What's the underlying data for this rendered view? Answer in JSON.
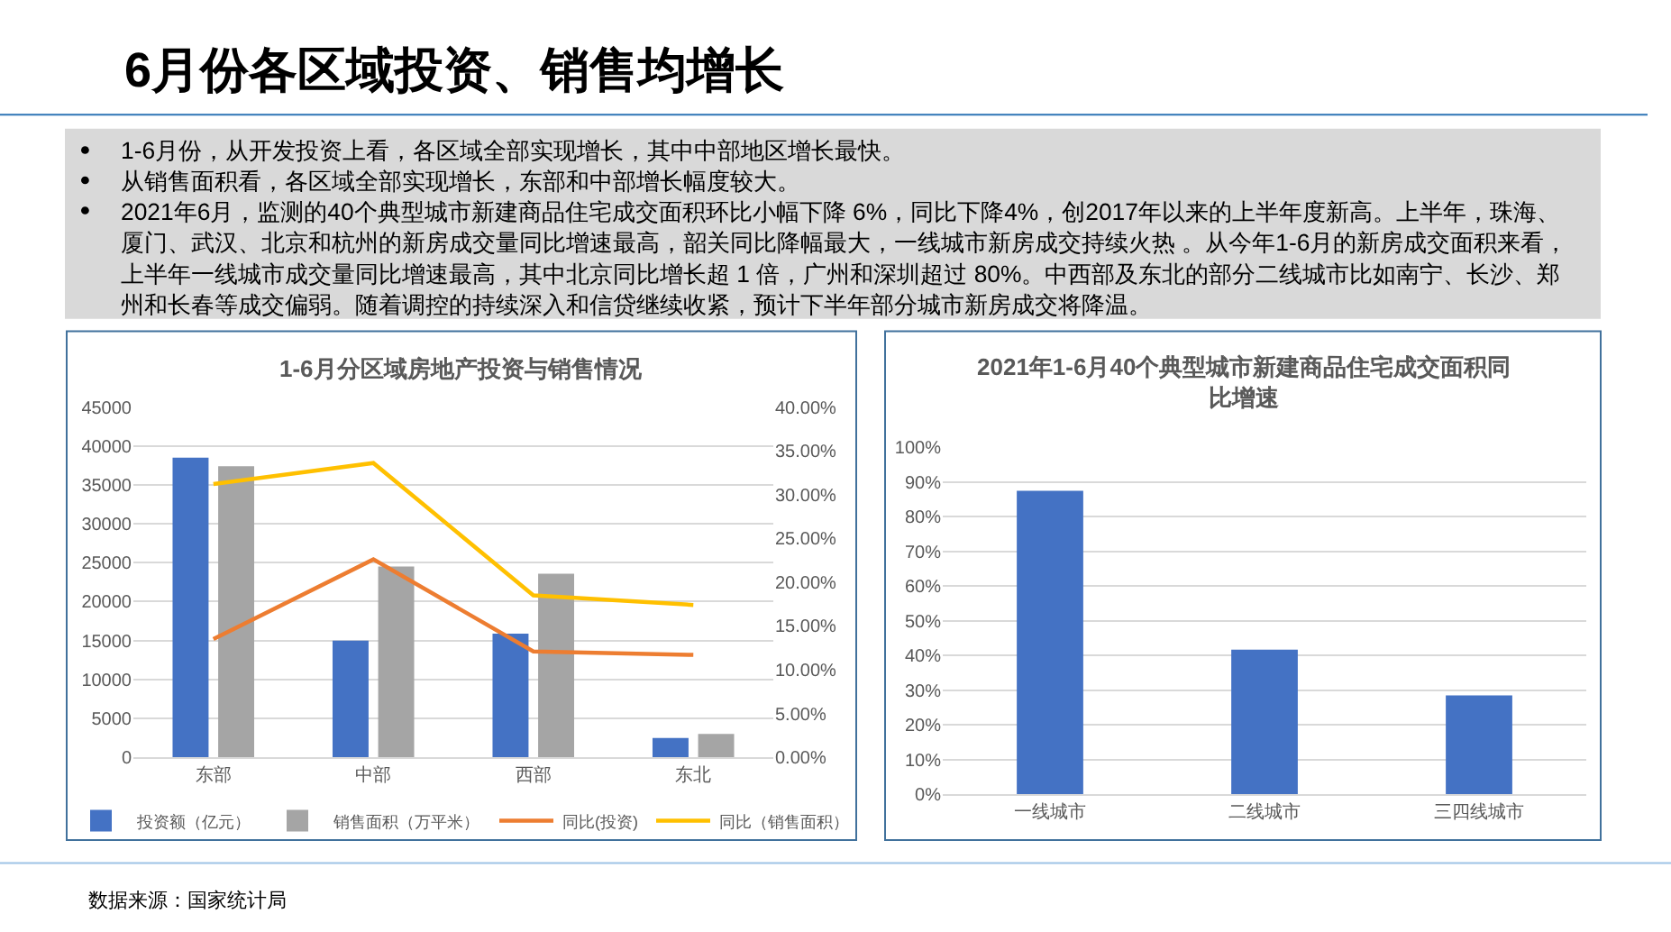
{
  "chart_data": [
    {
      "type": "other",
      "title": "6月份各区域投资、销售均增长",
      "annotations": [
        "1-6月份，从开发投资上看，各区域全部实现增长，其中中部地区增长最快。",
        "从销售面积看，各区域全部实现增长，东部和中部增长幅度较大。",
        "2021年6月，监测的40个典型城市新建商品住宅成交面积环比小幅下降 6%，同比下降4%，创2017年以来的上半年度新高。上半年，珠海、厦门、武汉、北京和杭州的新房成交量同比增速最高，韶关同比降幅最大，一线城市新房成交持续火热 。从今年1-6月的新房成交面积来看，上半年一线城市成交量同比增速最高，其中北京同比增长超 1 倍，广州和深圳超过 80%。中西部及东北的部分二线城市比如南宁、长沙、郑州和长春等成交偏弱。随着调控的持续深入和信贷继续收紧，预计下半年部分城市新房成交将降温。"
      ]
    },
    {
      "type": "bar",
      "title": "1-6月分区域房地产投资与销售情况",
      "categories": [
        "东部",
        "中部",
        "西部",
        "东北"
      ],
      "series": [
        {
          "name": "投资额（亿元）",
          "color": "#4472c4",
          "values": [
            38500,
            15000,
            15900,
            2500
          ]
        },
        {
          "name": "销售面积（万平米）",
          "color": "#a5a5a5",
          "values": [
            37400,
            24500,
            23600,
            3000
          ]
        },
        {
          "name": "同比(投资)",
          "type": "line",
          "axis": "y2",
          "color": "#ed7d31",
          "values": [
            13.5,
            22.6,
            12.1,
            11.7
          ]
        },
        {
          "name": "同比（销售面积）",
          "type": "line",
          "axis": "y2",
          "color": "#ffc000",
          "values": [
            31.2,
            33.6,
            18.5,
            17.4
          ]
        }
      ],
      "ylim": [
        0,
        45000
      ],
      "yticks": [
        0,
        5000,
        10000,
        15000,
        20000,
        25000,
        30000,
        35000,
        40000,
        45000
      ],
      "y2lim": [
        0,
        40
      ],
      "y2ticks": [
        {
          "value": 0,
          "label": "0.00%"
        },
        {
          "value": 5,
          "label": "5.00%"
        },
        {
          "value": 10,
          "label": "10.00%"
        },
        {
          "value": 15,
          "label": "15.00%"
        },
        {
          "value": 20,
          "label": "20.00%"
        },
        {
          "value": 25,
          "label": "25.00%"
        },
        {
          "value": 30,
          "label": "30.00%"
        },
        {
          "value": 35,
          "label": "35.00%"
        },
        {
          "value": 40,
          "label": "40.00%"
        }
      ],
      "grid": "y",
      "legend": "bottom",
      "marker": "none",
      "annotations": [
        "数据来源：国家统计局"
      ]
    },
    {
      "type": "bar",
      "title": "2021年1-6月40个典型城市新建商品住宅成交面积同比增速",
      "categories": [
        "一线城市",
        "二线城市",
        "三四线城市"
      ],
      "values": [
        87.5,
        41.7,
        28.5
      ],
      "color": "#4472c4",
      "ylim": [
        0,
        100
      ],
      "yticks": [
        {
          "value": 0,
          "label": "0%"
        },
        {
          "value": 10,
          "label": "10%"
        },
        {
          "value": 20,
          "label": "20%"
        },
        {
          "value": 30,
          "label": "30%"
        },
        {
          "value": 40,
          "label": "40%"
        },
        {
          "value": 50,
          "label": "50%"
        },
        {
          "value": 60,
          "label": "60%"
        },
        {
          "value": 70,
          "label": "70%"
        },
        {
          "value": 80,
          "label": "80%"
        },
        {
          "value": 90,
          "label": "90%"
        },
        {
          "value": 100,
          "label": "100%"
        }
      ],
      "grid": "y"
    }
  ]
}
